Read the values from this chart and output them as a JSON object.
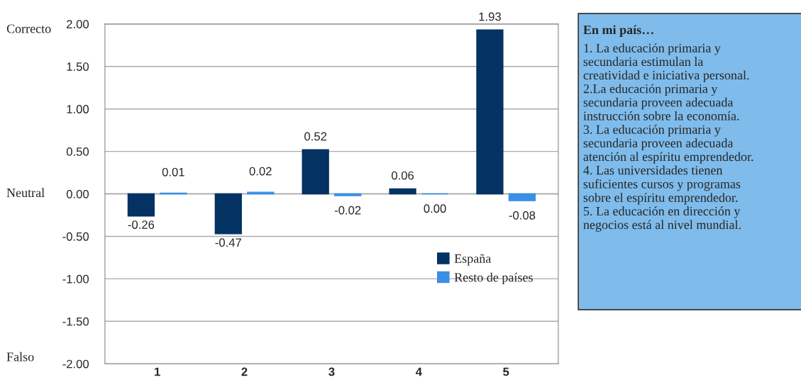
{
  "chart_data": {
    "type": "bar",
    "categories": [
      "1",
      "2",
      "3",
      "4",
      "5"
    ],
    "series": [
      {
        "name": "España",
        "color": "#033263",
        "values": [
          -0.26,
          -0.47,
          0.52,
          0.06,
          1.93
        ],
        "value_labels": [
          "-0.26",
          "-0.47",
          "0.52",
          "0.06",
          "1.93"
        ]
      },
      {
        "name": "Resto de países",
        "color": "#3a8ee6",
        "values": [
          0.01,
          0.02,
          -0.02,
          0.0,
          -0.08
        ],
        "value_labels": [
          "0.01",
          "0.02",
          "-0.02",
          "0.00",
          "-0.08"
        ]
      }
    ],
    "ylim": [
      -2,
      2
    ],
    "yticks": [
      {
        "value": -2,
        "label": "-2.00"
      },
      {
        "value": -1.5,
        "label": "-1.50"
      },
      {
        "value": -1,
        "label": "-1.00"
      },
      {
        "value": -0.5,
        "label": "-0.50"
      },
      {
        "value": 0,
        "label": "0.00"
      },
      {
        "value": 0.5,
        "label": "0.50"
      },
      {
        "value": 1,
        "label": "1.00"
      },
      {
        "value": 1.5,
        "label": "1.50"
      },
      {
        "value": 2,
        "label": "2.00"
      }
    ],
    "grid": "y",
    "legend": "bottom right",
    "annotations": [
      "Correcto",
      "Neutral",
      "Falso",
      "En mi país…",
      "1. La educación primaria y\nsecundaria estimulan la\ncreatividad e iniciativa personal.",
      "2.La educación primaria y\nsecundaria proveen adecuada\ninstrucción sobre la economía.",
      "3. La educación primaria y\nsecundaria proveen adecuada\natención al espíritu emprendedor.",
      "4. Las universidades tienen\nsuficientes cursos y programas\nsobre el espíritu emprendedor.",
      "5. La educación en dirección y\nnegocios está al nivel mundial."
    ]
  }
}
